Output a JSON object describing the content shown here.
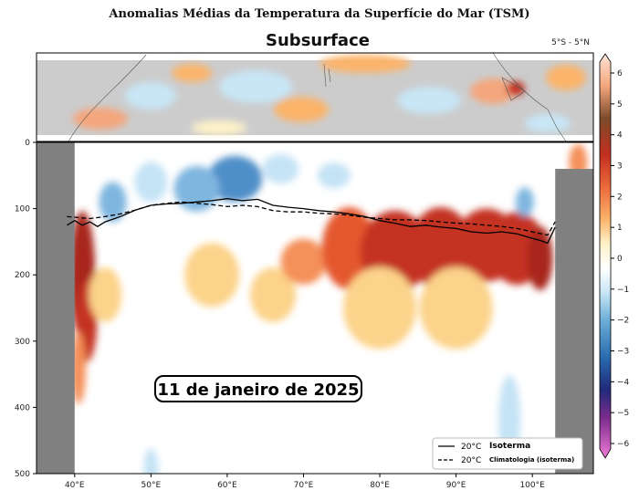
{
  "header": {
    "title": "Anomalias Médias da Temperatura da Superfície do Mar (TSM)",
    "subtitle": "Subsurface",
    "region": "5°S - 5°N"
  },
  "date_label": "11 de janeiro de 2025",
  "chart_data": {
    "type": "heatmap",
    "title": "Subsurface",
    "xlabel": "",
    "ylabel": "",
    "x_ticks": [
      "40°E",
      "50°E",
      "60°E",
      "70°E",
      "80°E",
      "90°E",
      "100°E"
    ],
    "x_tick_values": [
      40,
      50,
      60,
      70,
      80,
      90,
      100
    ],
    "xlim": [
      35,
      108
    ],
    "y_ticks": [
      "0",
      "100",
      "200",
      "300",
      "400",
      "500"
    ],
    "y_tick_values": [
      0,
      100,
      200,
      300,
      400,
      500
    ],
    "ylim": [
      500,
      0
    ],
    "colorbar": {
      "ticks": [
        "6",
        "5",
        "4",
        "3",
        "2",
        "1",
        "0",
        "−1",
        "−2",
        "−3",
        "−4",
        "−5",
        "−6"
      ],
      "tick_values": [
        6,
        5,
        4,
        3,
        2,
        1,
        0,
        -1,
        -2,
        -3,
        -4,
        -5,
        -6
      ],
      "range": [
        -6,
        6
      ]
    },
    "land_mask": {
      "west_boundary_lon": 40,
      "east_boundary_lon": 103
    },
    "anomaly_blobs": [
      {
        "lon": 41,
        "depth": 200,
        "value": 4.5
      },
      {
        "lon": 41.5,
        "depth": 270,
        "value": 3
      },
      {
        "lon": 40.5,
        "depth": 340,
        "value": 1.5
      },
      {
        "lon": 44,
        "depth": 230,
        "value": 1
      },
      {
        "lon": 58,
        "depth": 200,
        "value": 0.8
      },
      {
        "lon": 66,
        "depth": 230,
        "value": 0.8
      },
      {
        "lon": 70,
        "depth": 180,
        "value": 1.5
      },
      {
        "lon": 76,
        "depth": 160,
        "value": 2.5
      },
      {
        "lon": 82,
        "depth": 165,
        "value": 3
      },
      {
        "lon": 88,
        "depth": 160,
        "value": 3.2
      },
      {
        "lon": 94,
        "depth": 155,
        "value": 3
      },
      {
        "lon": 98,
        "depth": 160,
        "value": 3.2
      },
      {
        "lon": 101,
        "depth": 175,
        "value": 4.2
      },
      {
        "lon": 80,
        "depth": 250,
        "value": 0.8
      },
      {
        "lon": 90,
        "depth": 250,
        "value": 0.8
      },
      {
        "lon": 106,
        "depth": 30,
        "value": 1.5
      },
      {
        "lon": 61,
        "depth": 55,
        "value": -1.8
      },
      {
        "lon": 56,
        "depth": 70,
        "value": -1.2
      },
      {
        "lon": 50,
        "depth": 60,
        "value": -1
      },
      {
        "lon": 45,
        "depth": 90,
        "value": -1.2
      },
      {
        "lon": 67,
        "depth": 40,
        "value": -1
      },
      {
        "lon": 74,
        "depth": 50,
        "value": -0.8
      },
      {
        "lon": 99,
        "depth": 90,
        "value": -1.5
      },
      {
        "lon": 97,
        "depth": 420,
        "value": -0.8
      },
      {
        "lon": 50,
        "depth": 490,
        "value": -0.6
      }
    ],
    "series": [
      {
        "name": "Isoterma",
        "style": "solid",
        "x": [
          39,
          40,
          41,
          42,
          43,
          44,
          46,
          48,
          50,
          52,
          54,
          56,
          58,
          60,
          62,
          64,
          66,
          68,
          70,
          72,
          74,
          76,
          78,
          80,
          82,
          84,
          86,
          88,
          90,
          92,
          94,
          96,
          98,
          100,
          101,
          102,
          103
        ],
        "y": [
          125,
          118,
          125,
          120,
          127,
          120,
          112,
          102,
          95,
          93,
          92,
          90,
          88,
          85,
          88,
          86,
          95,
          98,
          100,
          103,
          105,
          108,
          112,
          118,
          122,
          127,
          125,
          128,
          130,
          135,
          137,
          135,
          138,
          145,
          148,
          152,
          128
        ]
      },
      {
        "name": "Climatologia (isoterma)",
        "style": "dashed",
        "x": [
          39,
          40,
          42,
          44,
          46,
          48,
          50,
          52,
          54,
          56,
          58,
          60,
          62,
          64,
          66,
          68,
          70,
          72,
          74,
          76,
          78,
          80,
          82,
          84,
          86,
          88,
          90,
          92,
          94,
          96,
          98,
          100,
          102,
          103
        ],
        "y": [
          112,
          113,
          115,
          112,
          108,
          102,
          95,
          92,
          90,
          92,
          94,
          97,
          95,
          97,
          103,
          105,
          105,
          107,
          108,
          110,
          113,
          115,
          117,
          117,
          118,
          120,
          122,
          123,
          125,
          127,
          130,
          135,
          140,
          120
        ]
      }
    ],
    "legend": {
      "position": "bottom-right",
      "entries": [
        {
          "value": "20°C",
          "name": "Isoterma",
          "style": "solid"
        },
        {
          "value": "20°C",
          "name": "Climatologia (isoterma)",
          "style": "dashed"
        }
      ]
    }
  },
  "colors": {
    "land": "#808080",
    "map_land": "#cccccc",
    "line": "#000000"
  }
}
